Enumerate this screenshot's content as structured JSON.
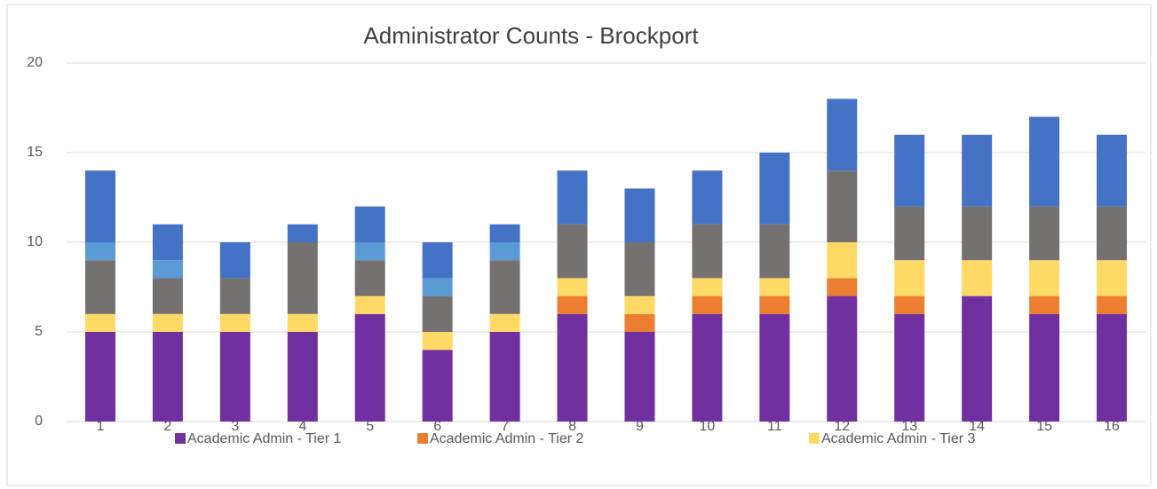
{
  "chart_data": {
    "type": "bar",
    "stacked": true,
    "title": "Administrator Counts - Brockport",
    "categories": [
      1,
      2,
      3,
      4,
      5,
      6,
      7,
      8,
      9,
      10,
      11,
      12,
      13,
      14,
      15,
      16
    ],
    "series": [
      {
        "name": "Academic Admin - Tier 1",
        "color": "#7030a0",
        "values": [
          5,
          5,
          5,
          5,
          6,
          4,
          5,
          6,
          5,
          6,
          6,
          7,
          6,
          7,
          6,
          6
        ]
      },
      {
        "name": "Academic Admin - Tier 2",
        "color": "#ed7d31",
        "values": [
          0,
          0,
          0,
          0,
          0,
          0,
          0,
          1,
          1,
          1,
          1,
          1,
          1,
          0,
          1,
          1
        ]
      },
      {
        "name": "Academic Admin - Tier 3",
        "color": "#ffd966",
        "values": [
          1,
          1,
          1,
          1,
          1,
          1,
          1,
          1,
          1,
          1,
          1,
          2,
          2,
          2,
          2,
          2
        ]
      },
      {
        "color": "#767171",
        "values": [
          3,
          2,
          2,
          4,
          2,
          2,
          3,
          3,
          3,
          3,
          3,
          4,
          3,
          3,
          3,
          3
        ]
      },
      {
        "color": "#5b9bd5",
        "values": [
          1,
          1,
          0,
          0,
          1,
          1,
          1,
          0,
          0,
          0,
          0,
          0,
          0,
          0,
          0,
          0
        ]
      },
      {
        "color": "#4472c4",
        "values": [
          4,
          2,
          2,
          1,
          2,
          2,
          1,
          3,
          3,
          3,
          4,
          4,
          4,
          4,
          5,
          4
        ]
      }
    ],
    "ylim": [
      0,
      20
    ],
    "yticks": [
      0,
      5,
      10,
      15,
      20
    ],
    "grid": true,
    "legend": "bottom"
  }
}
